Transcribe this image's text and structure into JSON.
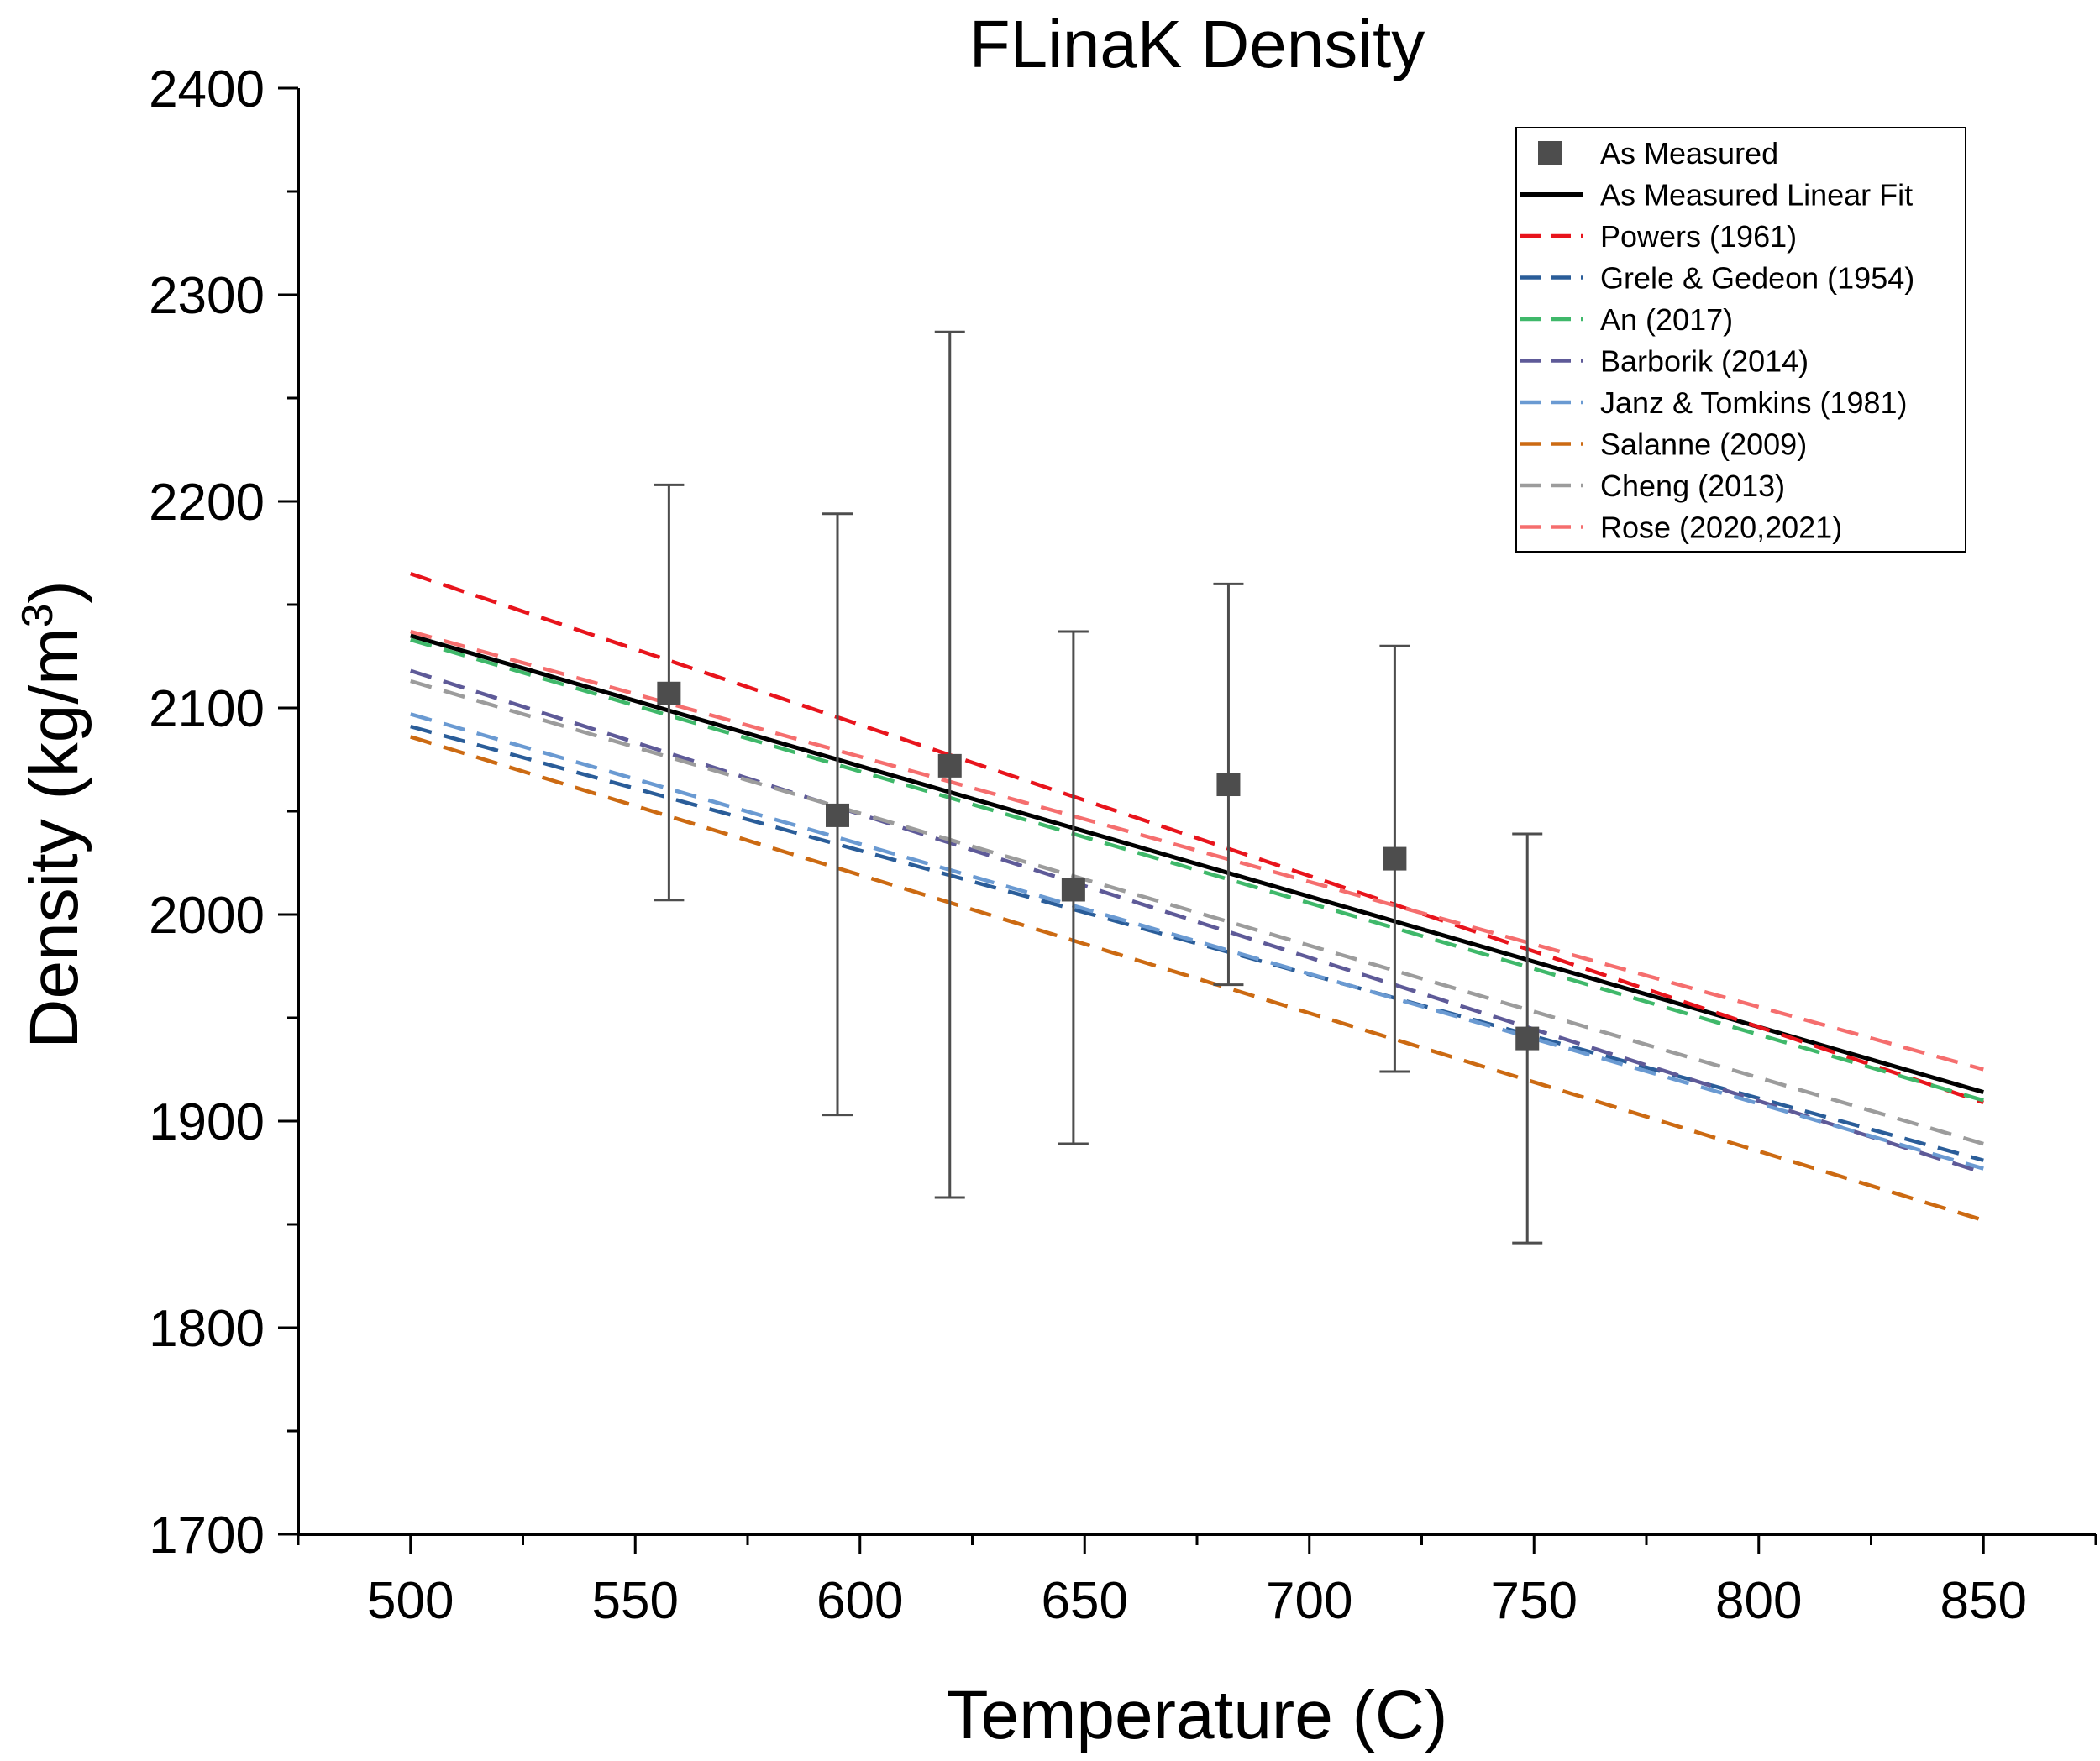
{
  "chart_data": {
    "type": "line",
    "title": "FLinaK Density",
    "xlabel": "Temperature (C)",
    "ylabel_main": "Density (kg/m",
    "ylabel_sup": "3",
    "ylabel_close": ")",
    "xlim": [
      475,
      875
    ],
    "ylim": [
      1700,
      2400
    ],
    "xticks": [
      500,
      550,
      600,
      650,
      700,
      750,
      800,
      850
    ],
    "xtick_labels": [
      "500",
      "550",
      "600",
      "650",
      "700",
      "750",
      "800",
      "850"
    ],
    "yticks": [
      1700,
      1800,
      1900,
      2000,
      2100,
      2200,
      2300,
      2400
    ],
    "ytick_labels": [
      "1700",
      "1800",
      "1900",
      "2000",
      "2100",
      "2200",
      "2300",
      "2400"
    ],
    "grid": false,
    "legend_position": "top-right",
    "measured": {
      "name": "As Measured",
      "color": "#4d4d4d",
      "points": [
        {
          "x": 557.5,
          "y": 2107,
          "ylow": 2007,
          "yhigh": 2208
        },
        {
          "x": 595,
          "y": 2048,
          "ylow": 1903,
          "yhigh": 2194
        },
        {
          "x": 620,
          "y": 2072,
          "ylow": 1863,
          "yhigh": 2282
        },
        {
          "x": 647.5,
          "y": 2012,
          "ylow": 1889,
          "yhigh": 2137
        },
        {
          "x": 682,
          "y": 2063,
          "ylow": 1966,
          "yhigh": 2160
        },
        {
          "x": 719,
          "y": 2027,
          "ylow": 1924,
          "yhigh": 2130
        },
        {
          "x": 748.5,
          "y": 1940,
          "ylow": 1841,
          "yhigh": 2039
        }
      ]
    },
    "series": [
      {
        "name": "As Measured Linear Fit",
        "color": "#000000",
        "style": "solid",
        "x": [
          500,
          850
        ],
        "y": [
          2135,
          1914
        ]
      },
      {
        "name": "Powers (1961)",
        "color": "#e8141c",
        "style": "dashed",
        "x": [
          500,
          850
        ],
        "y": [
          2165,
          1909
        ]
      },
      {
        "name": "Grele & Gedeon (1954)",
        "color": "#2a5d99",
        "style": "dashed",
        "x": [
          500,
          850
        ],
        "y": [
          2091,
          1881
        ]
      },
      {
        "name": "An (2017)",
        "color": "#3fb86a",
        "style": "dashed",
        "x": [
          500,
          850
        ],
        "y": [
          2133,
          1910
        ]
      },
      {
        "name": "Barborik (2014)",
        "color": "#5e5a98",
        "style": "dashed",
        "x": [
          500,
          850
        ],
        "y": [
          2118,
          1875
        ]
      },
      {
        "name": "Janz & Tomkins (1981)",
        "color": "#6a9ad2",
        "style": "dashed",
        "x": [
          500,
          850
        ],
        "y": [
          2097,
          1877
        ]
      },
      {
        "name": "Salanne (2009)",
        "color": "#cc6a12",
        "style": "dashed",
        "x": [
          500,
          850
        ],
        "y": [
          2086,
          1852
        ]
      },
      {
        "name": "Cheng (2013)",
        "color": "#9c9c9c",
        "style": "dashed",
        "x": [
          500,
          850
        ],
        "y": [
          2113,
          1889
        ]
      },
      {
        "name": "Rose (2020,2021)",
        "color": "#f56e6e",
        "style": "dashed",
        "x": [
          500,
          850
        ],
        "y": [
          2137,
          1925
        ]
      }
    ]
  }
}
